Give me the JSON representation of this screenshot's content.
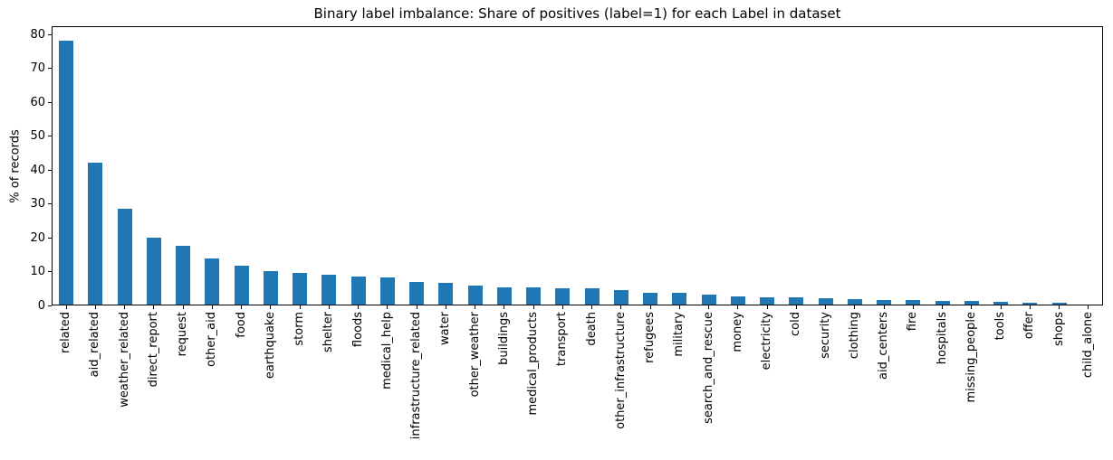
{
  "chart_data": {
    "type": "bar",
    "title": "Binary label imbalance: Share of positives (label=1) for each Label in dataset",
    "xlabel": "",
    "ylabel": "% of records",
    "categories": [
      "related",
      "aid_related",
      "weather_related",
      "direct_report",
      "request",
      "other_aid",
      "food",
      "earthquake",
      "storm",
      "shelter",
      "floods",
      "medical_help",
      "infrastructure_related",
      "water",
      "other_weather",
      "buildings",
      "medical_products",
      "transport",
      "death",
      "other_infrastructure",
      "refugees",
      "military",
      "search_and_rescue",
      "money",
      "electricity",
      "cold",
      "security",
      "clothing",
      "aid_centers",
      "fire",
      "hospitals",
      "missing_people",
      "tools",
      "offer",
      "shops",
      "child_alone"
    ],
    "values": [
      78.0,
      42.0,
      28.2,
      19.8,
      17.3,
      13.5,
      11.5,
      9.8,
      9.4,
      8.8,
      8.3,
      8.0,
      6.8,
      6.5,
      5.5,
      5.1,
      5.0,
      4.75,
      4.7,
      4.4,
      3.6,
      3.5,
      2.9,
      2.4,
      2.2,
      2.1,
      1.9,
      1.7,
      1.4,
      1.25,
      1.2,
      1.1,
      0.7,
      0.55,
      0.5,
      0.0
    ],
    "ylim": [
      0,
      82.5
    ],
    "yticks": [
      0,
      10,
      20,
      30,
      40,
      50,
      60,
      70,
      80
    ],
    "x_tick_rotation": 90,
    "grid": false,
    "bar_color": "#1f77b4",
    "axis_color": "#000000",
    "background_color": "#ffffff"
  }
}
